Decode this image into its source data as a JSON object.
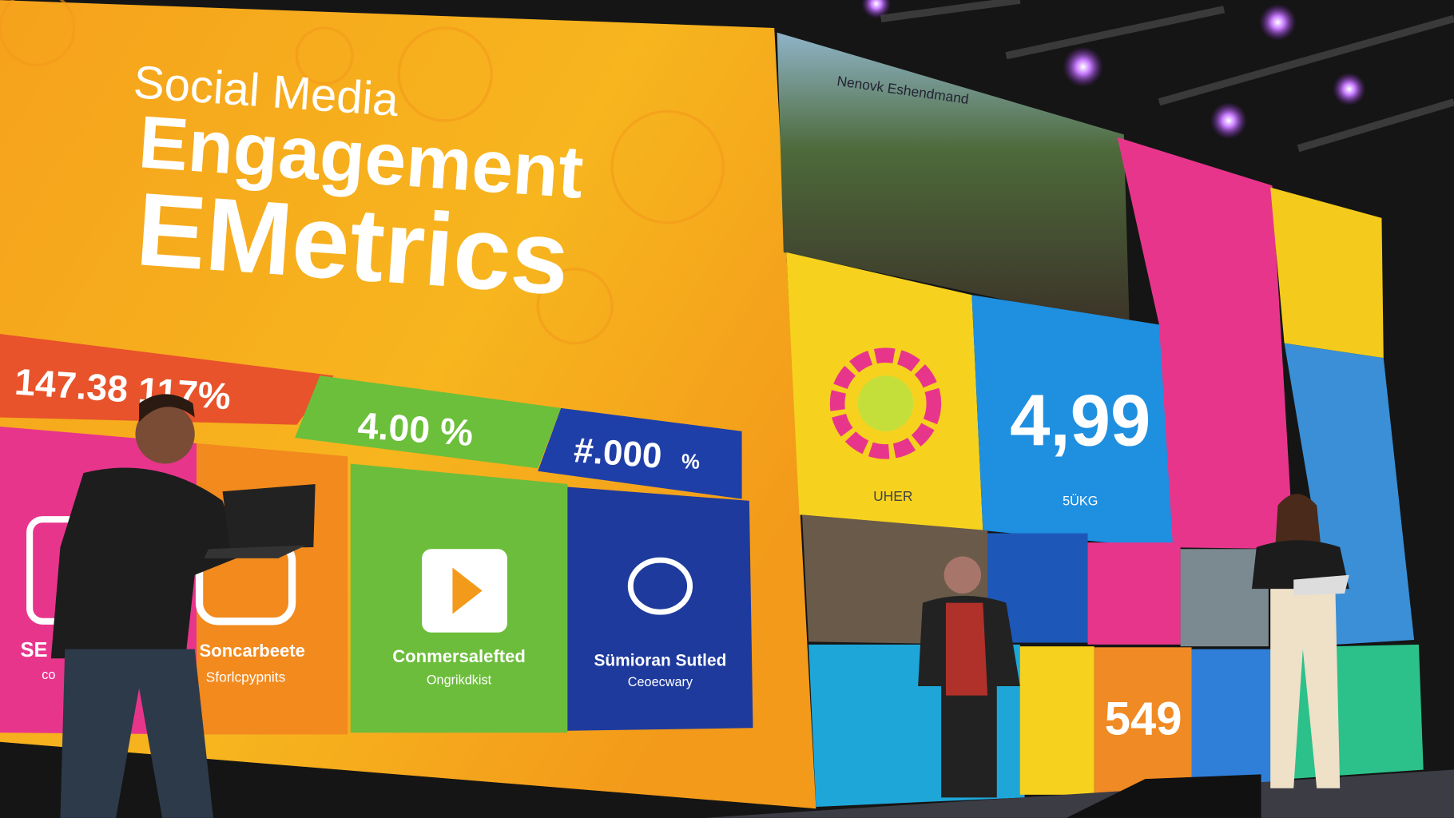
{
  "screen": {
    "title": [
      "Social Media",
      "Engagement",
      "EMetrics"
    ],
    "stats": [
      "147.38 117%",
      "4.00 %",
      "#.000",
      "%"
    ],
    "tiles": [
      {
        "title": "SE",
        "subtitle": "co"
      },
      {
        "title": "Soncarbeete",
        "subtitle": "Sforlcpypnits"
      },
      {
        "title": "Conmersalefted",
        "subtitle": "Ongrikdkist"
      },
      {
        "title": "Sümioran Sutled",
        "subtitle": "Ceoecwary"
      }
    ]
  },
  "right_screen": {
    "header": "Nenovk Eshendmand",
    "labels": [
      "UHER",
      "4,99",
      "5ÜKG",
      "549"
    ]
  }
}
